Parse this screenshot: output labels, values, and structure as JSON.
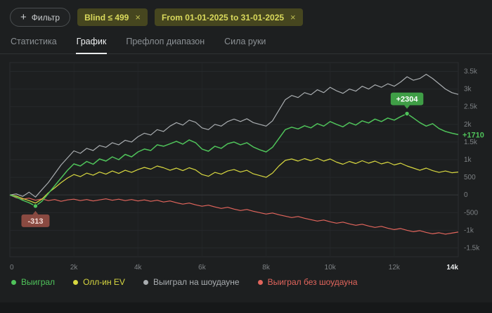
{
  "topbar": {
    "filter_label": "Фильтр",
    "chips": [
      {
        "label": "Blind ≤ 499"
      },
      {
        "label": "From 01-01-2025 to 31-01-2025"
      }
    ]
  },
  "icons": {
    "plus": "+",
    "close": "×"
  },
  "tabs": {
    "items": [
      "Статистика",
      "График",
      "Префлоп диапазон",
      "Сила руки"
    ],
    "active_index": 1
  },
  "colors": {
    "page_bg": "#1d1f20",
    "chip_bg": "#46461f",
    "chip_text": "#d9d95c",
    "green": "#4fc35a",
    "yellow": "#d8d840",
    "gray": "#a9adb0",
    "red": "#e2655c",
    "badge_max_bg": "#3f9e46",
    "badge_max_text": "#ffffff",
    "badge_min_bg": "#8a4a41",
    "badge_min_text": "#f2dad5",
    "grid": "#26292b",
    "grid_vertical": "#232628",
    "grid_zero": "#34383b",
    "plot_border": "#2a2d2f",
    "axis_text": "#7d8184",
    "axis_text_bold": "#e9ebec"
  },
  "chart_data": {
    "type": "line",
    "xlabel": "",
    "ylabel": "",
    "xlim": [
      0,
      14000
    ],
    "ylim": [
      -1750,
      3750
    ],
    "legend_position": "bottom",
    "grid": true,
    "x_ticks": [
      {
        "v": 0,
        "label": "0"
      },
      {
        "v": 2000,
        "label": "2k"
      },
      {
        "v": 4000,
        "label": "4k"
      },
      {
        "v": 6000,
        "label": "6k"
      },
      {
        "v": 8000,
        "label": "8k"
      },
      {
        "v": 10000,
        "label": "10k"
      },
      {
        "v": 12000,
        "label": "12k"
      },
      {
        "v": 14000,
        "label": "14k",
        "bold": true
      }
    ],
    "y_ticks": [
      {
        "v": 3500,
        "label": "3.5k"
      },
      {
        "v": 3000,
        "label": "3k"
      },
      {
        "v": 2500,
        "label": "2.5k"
      },
      {
        "v": 2000,
        "label": "2k"
      },
      {
        "v": 1500,
        "label": "1.5k"
      },
      {
        "v": 1000,
        "label": "1k"
      },
      {
        "v": 500,
        "label": "500"
      },
      {
        "v": 0,
        "label": "0"
      },
      {
        "v": -500,
        "label": "-500"
      },
      {
        "v": -1000,
        "label": "-1k"
      },
      {
        "v": -1500,
        "label": "-1.5k"
      }
    ],
    "x": [
      0,
      200,
      400,
      600,
      800,
      1000,
      1200,
      1400,
      1600,
      1800,
      2000,
      2200,
      2400,
      2600,
      2800,
      3000,
      3200,
      3400,
      3600,
      3800,
      4000,
      4200,
      4400,
      4600,
      4800,
      5000,
      5200,
      5400,
      5600,
      5800,
      6000,
      6200,
      6400,
      6600,
      6800,
      7000,
      7200,
      7400,
      7600,
      7800,
      8000,
      8200,
      8400,
      8600,
      8800,
      9000,
      9200,
      9400,
      9600,
      9800,
      10000,
      10200,
      10400,
      10600,
      10800,
      11000,
      11200,
      11400,
      11600,
      11800,
      12000,
      12200,
      12400,
      12600,
      12800,
      13000,
      13200,
      13400,
      13600,
      13800,
      14000
    ],
    "series": [
      {
        "name": "Выиграл",
        "color": "#4fc35a",
        "values": [
          0,
          -60,
          -150,
          -220,
          -313,
          -180,
          40,
          260,
          480,
          700,
          880,
          820,
          950,
          870,
          1020,
          960,
          1080,
          1000,
          1150,
          1080,
          1220,
          1300,
          1260,
          1420,
          1380,
          1450,
          1520,
          1440,
          1560,
          1480,
          1300,
          1240,
          1380,
          1320,
          1450,
          1500,
          1420,
          1480,
          1360,
          1280,
          1220,
          1350,
          1600,
          1850,
          1920,
          1870,
          1960,
          1900,
          2020,
          1950,
          2080,
          2000,
          1930,
          2050,
          1980,
          2100,
          2040,
          2150,
          2080,
          2180,
          2120,
          2220,
          2304,
          2180,
          2050,
          1950,
          2020,
          1880,
          1800,
          1750,
          1710
        ]
      },
      {
        "name": "Олл-ин EV",
        "color": "#d8d840",
        "values": [
          0,
          -30,
          -100,
          -160,
          -230,
          -120,
          60,
          200,
          350,
          480,
          580,
          520,
          620,
          560,
          650,
          590,
          680,
          610,
          700,
          640,
          720,
          780,
          730,
          820,
          770,
          700,
          760,
          690,
          770,
          710,
          580,
          530,
          640,
          590,
          680,
          720,
          650,
          700,
          600,
          550,
          500,
          620,
          820,
          980,
          1020,
          960,
          1030,
          970,
          1040,
          960,
          1020,
          930,
          870,
          950,
          890,
          970,
          900,
          960,
          880,
          930,
          850,
          900,
          820,
          760,
          700,
          760,
          690,
          640,
          680,
          630,
          650
        ]
      },
      {
        "name": "Выиграл на шоудауне",
        "color": "#a9adb0",
        "values": [
          0,
          30,
          -40,
          80,
          -60,
          150,
          350,
          600,
          850,
          1050,
          1250,
          1180,
          1320,
          1260,
          1400,
          1350,
          1480,
          1420,
          1550,
          1500,
          1650,
          1750,
          1700,
          1850,
          1800,
          1950,
          2050,
          1980,
          2120,
          2060,
          1900,
          1850,
          2000,
          1950,
          2080,
          2150,
          2080,
          2160,
          2050,
          2000,
          1950,
          2100,
          2400,
          2700,
          2820,
          2760,
          2900,
          2840,
          2980,
          2900,
          3050,
          2950,
          2880,
          3000,
          2940,
          3080,
          3000,
          3120,
          3050,
          3150,
          3080,
          3200,
          3350,
          3250,
          3300,
          3420,
          3300,
          3150,
          3000,
          2900,
          2850
        ]
      },
      {
        "name": "Выиграл без шоудауна",
        "color": "#e2655c",
        "values": [
          0,
          -80,
          -120,
          -90,
          -150,
          -110,
          -160,
          -130,
          -180,
          -140,
          -120,
          -160,
          -130,
          -170,
          -140,
          -110,
          -150,
          -120,
          -160,
          -130,
          -170,
          -140,
          -180,
          -150,
          -200,
          -170,
          -220,
          -260,
          -230,
          -280,
          -320,
          -290,
          -340,
          -380,
          -350,
          -400,
          -440,
          -410,
          -460,
          -500,
          -540,
          -510,
          -560,
          -600,
          -640,
          -610,
          -660,
          -700,
          -740,
          -710,
          -760,
          -800,
          -770,
          -820,
          -860,
          -830,
          -880,
          -920,
          -890,
          -940,
          -980,
          -950,
          -1000,
          -1040,
          -1010,
          -1060,
          -1100,
          -1070,
          -1110,
          -1080,
          -1050
        ]
      }
    ],
    "markers": [
      {
        "label": "+2304",
        "x": 12400,
        "value": 2304,
        "position": "above",
        "style": "max"
      },
      {
        "label": "-313",
        "x": 800,
        "value": -313,
        "position": "below",
        "style": "min"
      }
    ],
    "end_label": {
      "label": "+1710",
      "value": 1710
    }
  }
}
